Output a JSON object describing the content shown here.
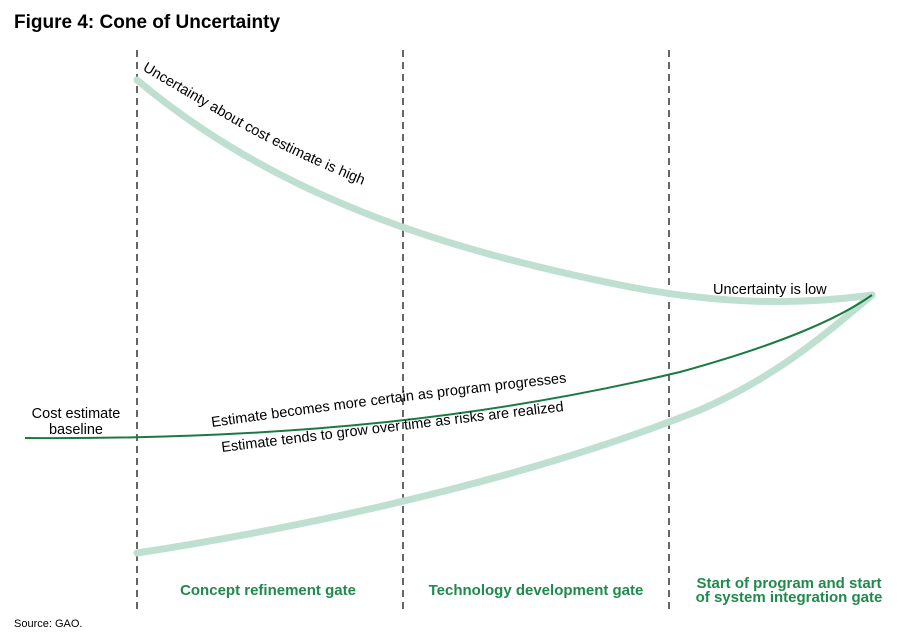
{
  "figure": {
    "title": "Figure 4: Cone of Uncertainty",
    "source": "Source: GAO."
  },
  "labels": {
    "uncertainty_high": "Uncertainty about cost estimate is high",
    "uncertainty_low": "Uncertainty is low",
    "baseline_line1": "Cost estimate",
    "baseline_line2": "baseline",
    "certain": "Estimate becomes more certain as program progresses",
    "grow": "Estimate tends to grow over time as risks are realized"
  },
  "gates": {
    "concept": "Concept refinement gate",
    "technology": "Technology development gate",
    "program_line1": "Start of program and start",
    "program_line2": "of system integration gate"
  },
  "colors": {
    "cone": "#bfe0d0",
    "baseline": "#1b7a44",
    "gate_text": "#1f8a4c",
    "divider": "#000000"
  }
}
